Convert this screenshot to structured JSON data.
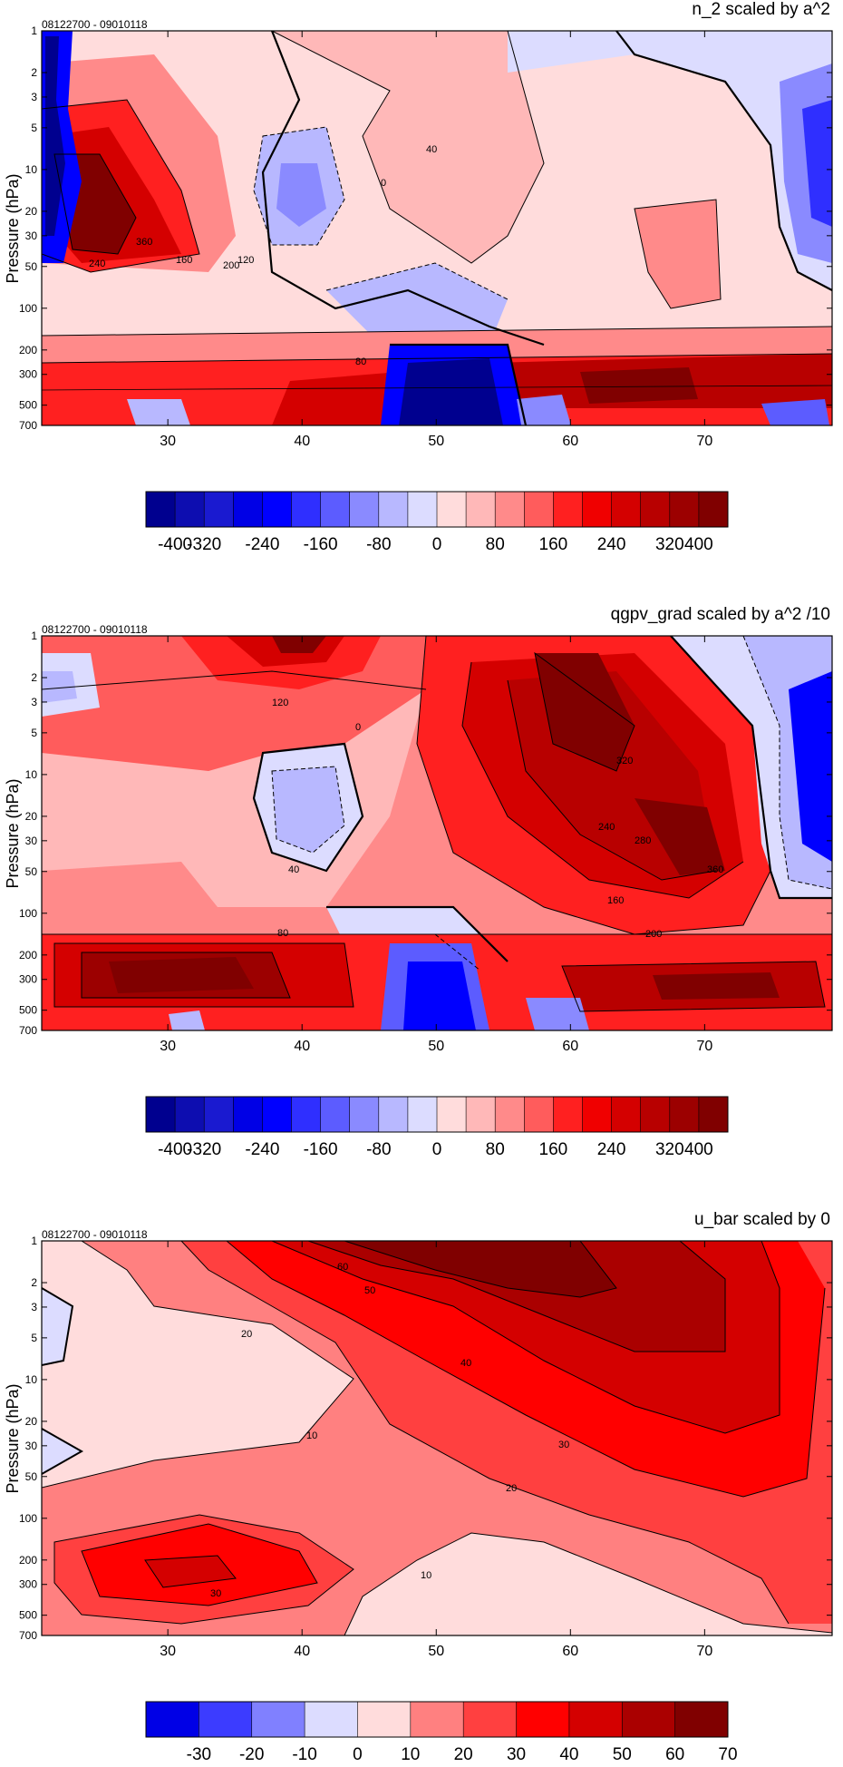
{
  "palette_main": [
    "#00008f",
    "#0d0db0",
    "#1a1ad0",
    "#0000e6",
    "#0000ff",
    "#2f2fff",
    "#5c5cff",
    "#8a8aff",
    "#b8b8ff",
    "#dcdcff",
    "#ffdcdc",
    "#ffb8b8",
    "#ff8a8a",
    "#ff5c5c",
    "#ff2020",
    "#f00000",
    "#d40000",
    "#b80000",
    "#9c0000",
    "#800000"
  ],
  "palette_ubar": [
    "#0000e6",
    "#3c3cff",
    "#8080ff",
    "#dcdcff",
    "#ffdcdc",
    "#ff8080",
    "#ff4040",
    "#ff0000",
    "#d40000",
    "#aa0000",
    "#800000"
  ],
  "chart_data": [
    {
      "type": "heatmap",
      "title": "n_2 scaled by a^2",
      "date_range": "08122700 - 09010118",
      "ylabel": "Pressure (hPa)",
      "xlim": [
        20.6,
        79.5
      ],
      "x_ticks": [
        30,
        40,
        50,
        60,
        70
      ],
      "y_ticks": [
        "1",
        "2",
        "3",
        "5",
        "10",
        "20",
        "30",
        "50",
        "100",
        "200",
        "300",
        "500",
        "700"
      ],
      "contour_labels": [
        "0",
        "40",
        "80",
        "120",
        "160",
        "200",
        "240",
        "360"
      ],
      "colorbar_labels": [
        "-400",
        "-320",
        "-240",
        "-160",
        "-80",
        "0",
        "80",
        "160",
        "240",
        "320",
        "400"
      ],
      "note": "contour labels partially obscured"
    },
    {
      "type": "heatmap",
      "title": "qgpv_grad scaled by a^2 /10",
      "date_range": "08122700 - 09010118",
      "ylabel": "Pressure (hPa)",
      "xlim": [
        20.6,
        79.5
      ],
      "x_ticks": [
        30,
        40,
        50,
        60,
        70
      ],
      "y_ticks": [
        "1",
        "2",
        "3",
        "5",
        "10",
        "20",
        "30",
        "50",
        "100",
        "200",
        "300",
        "500",
        "700"
      ],
      "contour_labels": [
        "0",
        "40",
        "80",
        "120",
        "160",
        "200",
        "240",
        "280",
        "320",
        "360"
      ],
      "colorbar_labels": [
        "-400",
        "-320",
        "-240",
        "-160",
        "-80",
        "0",
        "80",
        "160",
        "240",
        "320",
        "400"
      ]
    },
    {
      "type": "heatmap",
      "title": "u_bar scaled by 0",
      "date_range": "08122700 - 09010118",
      "ylabel": "Pressure (hPa)",
      "xlim": [
        20.6,
        79.5
      ],
      "x_ticks": [
        30,
        40,
        50,
        60,
        70
      ],
      "y_ticks": [
        "1",
        "2",
        "3",
        "5",
        "10",
        "20",
        "30",
        "50",
        "100",
        "200",
        "300",
        "500",
        "700"
      ],
      "contour_labels": [
        "10",
        "20",
        "30",
        "40",
        "50",
        "60"
      ],
      "colorbar_labels": [
        "-30",
        "-20",
        "-10",
        "0",
        "10",
        "20",
        "30",
        "40",
        "50",
        "60",
        "70"
      ]
    }
  ]
}
